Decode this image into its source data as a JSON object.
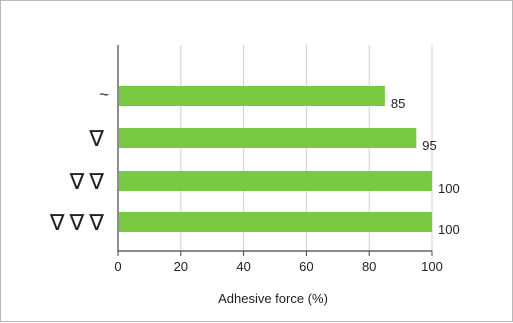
{
  "chart_data": {
    "type": "bar",
    "orientation": "horizontal",
    "categories": [
      "~",
      "∇",
      "∇∇",
      "∇∇∇"
    ],
    "values": [
      85,
      95,
      100,
      100
    ],
    "value_labels": [
      "85",
      "95",
      "100",
      "100"
    ],
    "title": "",
    "xlabel": "Adhesive force (%)",
    "ylabel": "",
    "xlim": [
      0,
      100
    ],
    "xticks": [
      "0",
      "20",
      "40",
      "60",
      "80",
      "100"
    ],
    "grid": true,
    "legend": "none",
    "colors": {
      "bar": "#7ac943",
      "grid": "#cfcfcf",
      "axis": "#444444"
    }
  }
}
